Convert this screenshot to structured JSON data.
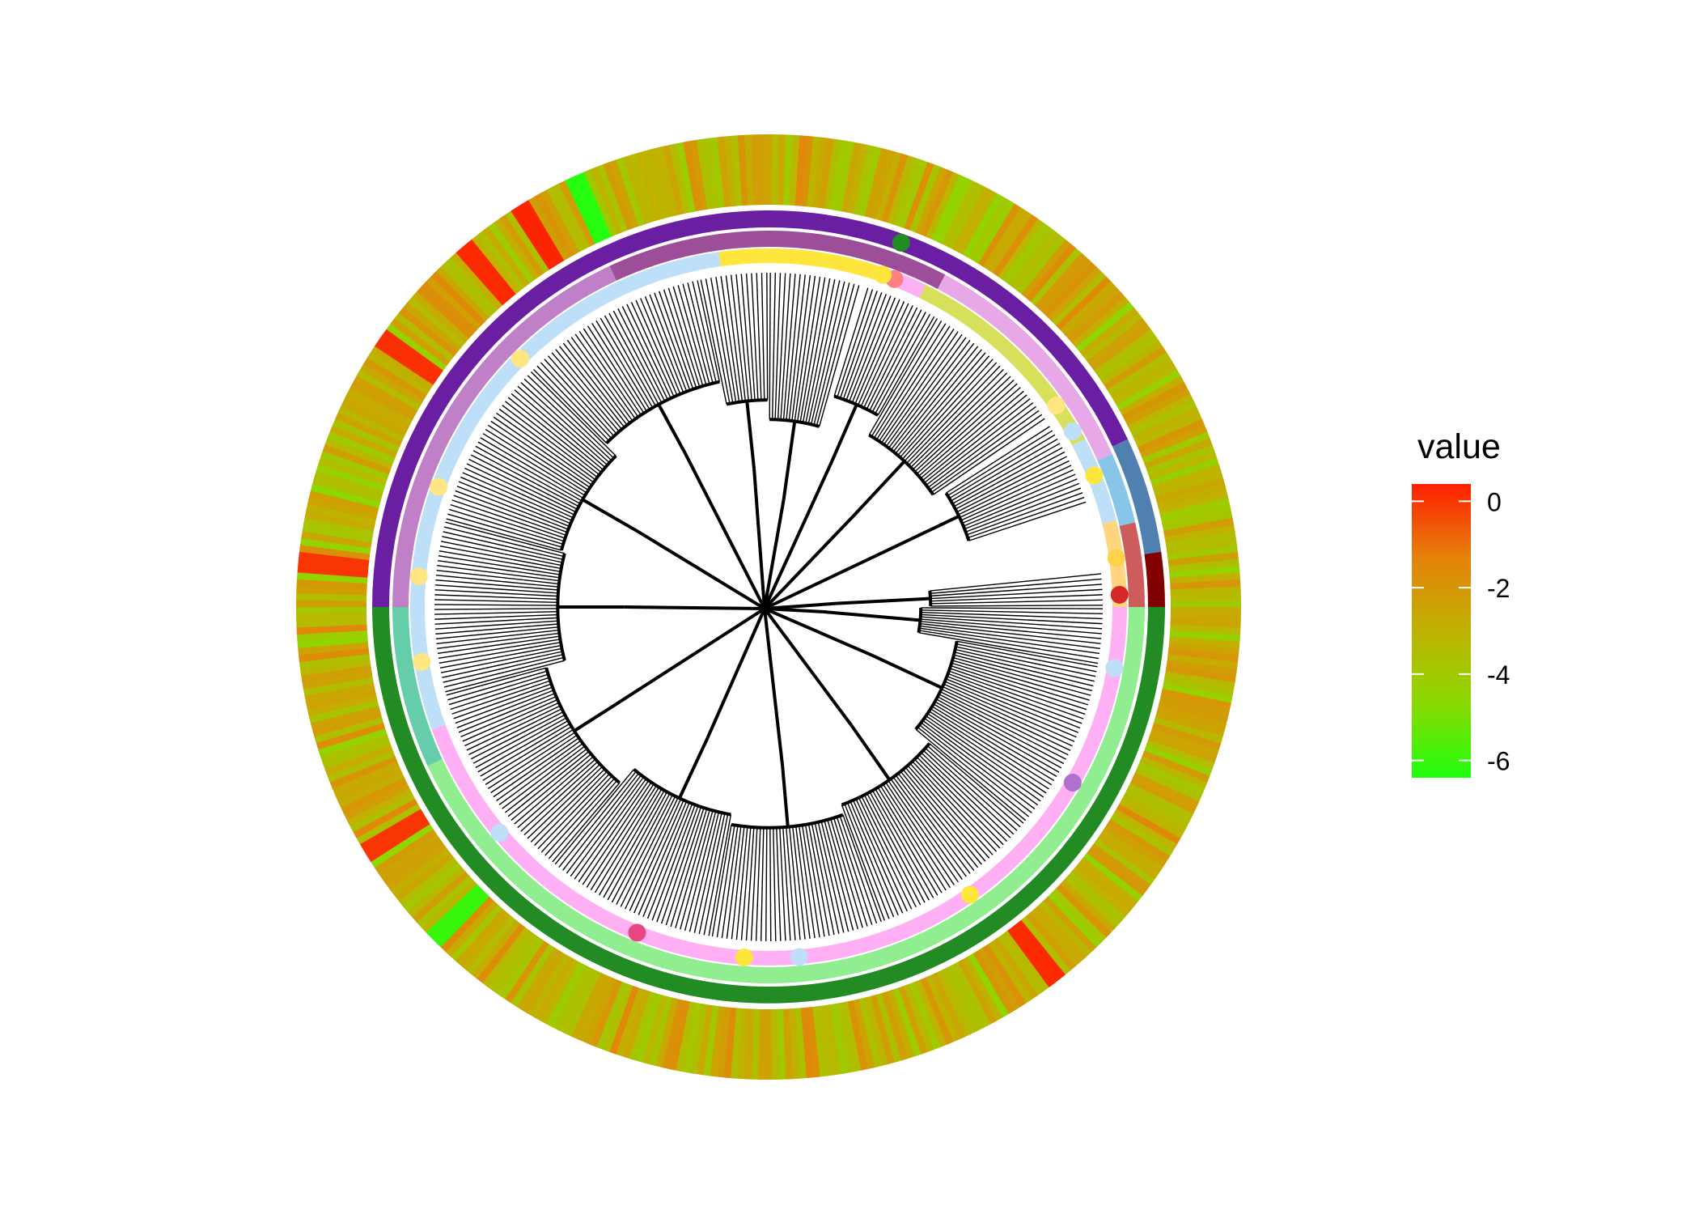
{
  "chart_data": {
    "type": "heatmap",
    "title": "",
    "legend": {
      "title": "value",
      "placement": "right",
      "ticks": [
        0,
        -2,
        -4,
        -6
      ],
      "tick_labels": [
        "0",
        "-2",
        "-4",
        "-6"
      ],
      "range": [
        -6.4,
        0.4
      ],
      "colors": {
        "high": "#FF1E00",
        "mid_high": "#E5820B",
        "mid": "#C0B200",
        "mid_low": "#8ADA00",
        "low": "#1EFF10"
      }
    },
    "rings": [
      {
        "name": "",
        "segments": [
          {
            "start_deg": 0,
            "end_deg": 180,
            "color": "#238B23"
          },
          {
            "start_deg": 180,
            "end_deg": 335,
            "color": "#6A1FA3"
          },
          {
            "start_deg": 335,
            "end_deg": 352,
            "color": "#5080B0"
          },
          {
            "start_deg": 352,
            "end_deg": 360,
            "color": "#800000"
          }
        ]
      },
      {
        "name": "",
        "segments": [
          {
            "start_deg": 0,
            "end_deg": 155,
            "color": "#90EE90"
          },
          {
            "start_deg": 155,
            "end_deg": 180,
            "color": "#66CDAA"
          },
          {
            "start_deg": 180,
            "end_deg": 245,
            "color": "#C080C8"
          },
          {
            "start_deg": 245,
            "end_deg": 298,
            "color": "#9C4F98"
          },
          {
            "start_deg": 298,
            "end_deg": 336,
            "color": "#E8A8E8"
          },
          {
            "start_deg": 336,
            "end_deg": 347,
            "color": "#87C6E8"
          },
          {
            "start_deg": 347,
            "end_deg": 360,
            "color": "#CD5C5C"
          }
        ]
      },
      {
        "name": "",
        "segments": [
          {
            "start_deg": 0,
            "end_deg": 160,
            "color": "#FFB0F5"
          },
          {
            "start_deg": 160,
            "end_deg": 262,
            "color": "#BDE0F8"
          },
          {
            "start_deg": 262,
            "end_deg": 288,
            "color": "#FFE63D"
          },
          {
            "start_deg": 288,
            "end_deg": 296,
            "color": "#FFB0F5"
          },
          {
            "start_deg": 296,
            "end_deg": 332,
            "color": "#D6E05A"
          },
          {
            "start_deg": 332,
            "end_deg": 346,
            "color": "#BDE0F8"
          },
          {
            "start_deg": 346,
            "end_deg": 360,
            "color": "#FFD580"
          }
        ]
      }
    ],
    "dot_markers": [
      {
        "angle_deg": 358,
        "color": "#D62828"
      },
      {
        "angle_deg": 352,
        "color": "#FFD24D"
      },
      {
        "angle_deg": 338,
        "color": "#FFE63D"
      },
      {
        "angle_deg": 325,
        "color": "#FFE680"
      },
      {
        "angle_deg": 330,
        "color": "#BDE0F8"
      },
      {
        "angle_deg": 291,
        "color": "#FF8080"
      },
      {
        "angle_deg": 289,
        "color": "#FFE63D"
      },
      {
        "angle_deg": 30,
        "color": "#B070D0"
      },
      {
        "angle_deg": 55,
        "color": "#FFE63D"
      },
      {
        "angle_deg": 85,
        "color": "#BDE0F8"
      },
      {
        "angle_deg": 94,
        "color": "#FFE63D"
      },
      {
        "angle_deg": 112,
        "color": "#E84880"
      },
      {
        "angle_deg": 140,
        "color": "#BDE0F8"
      },
      {
        "angle_deg": 171,
        "color": "#FFE680"
      },
      {
        "angle_deg": 185,
        "color": "#FFE680"
      },
      {
        "angle_deg": 200,
        "color": "#FFE680"
      },
      {
        "angle_deg": 225,
        "color": "#FFE680"
      },
      {
        "angle_deg": 10,
        "color": "#BDE0F8"
      }
    ],
    "highlight_marker": {
      "angle_deg": 290,
      "color": "#228B22"
    },
    "heatmap_tips": 430,
    "heatmap_seed": 1729,
    "heatmap_hotspots": [
      {
        "angle_deg": 238,
        "value": 0.3
      },
      {
        "angle_deg": 229,
        "value": 0.2
      },
      {
        "angle_deg": 214,
        "value": 0.1
      },
      {
        "angle_deg": 245,
        "value": -6.3
      },
      {
        "angle_deg": 135,
        "value": -6.0
      },
      {
        "angle_deg": 148,
        "value": 0.0
      },
      {
        "angle_deg": 52,
        "value": 0.2
      },
      {
        "angle_deg": 185,
        "value": 0.0
      }
    ],
    "tree": {
      "description_tip_count": 430,
      "clades": [
        {
          "start_deg": 258,
          "end_deg": 270,
          "depth": 0.62
        },
        {
          "start_deg": 270,
          "end_deg": 286,
          "depth": 0.72
        },
        {
          "start_deg": 287,
          "end_deg": 300,
          "depth": 0.55
        },
        {
          "start_deg": 300,
          "end_deg": 326,
          "depth": 0.66
        },
        {
          "start_deg": 327,
          "end_deg": 342,
          "depth": 0.6
        },
        {
          "start_deg": 354,
          "end_deg": 360,
          "depth": 0.85
        },
        {
          "start_deg": 0,
          "end_deg": 10,
          "depth": 0.9
        },
        {
          "start_deg": 10,
          "end_deg": 40,
          "depth": 0.7
        },
        {
          "start_deg": 40,
          "end_deg": 70,
          "depth": 0.6
        },
        {
          "start_deg": 70,
          "end_deg": 100,
          "depth": 0.55
        },
        {
          "start_deg": 100,
          "end_deg": 130,
          "depth": 0.6
        },
        {
          "start_deg": 130,
          "end_deg": 165,
          "depth": 0.5
        },
        {
          "start_deg": 165,
          "end_deg": 195,
          "depth": 0.6
        },
        {
          "start_deg": 195,
          "end_deg": 225,
          "depth": 0.58
        },
        {
          "start_deg": 225,
          "end_deg": 258,
          "depth": 0.5
        }
      ]
    }
  }
}
